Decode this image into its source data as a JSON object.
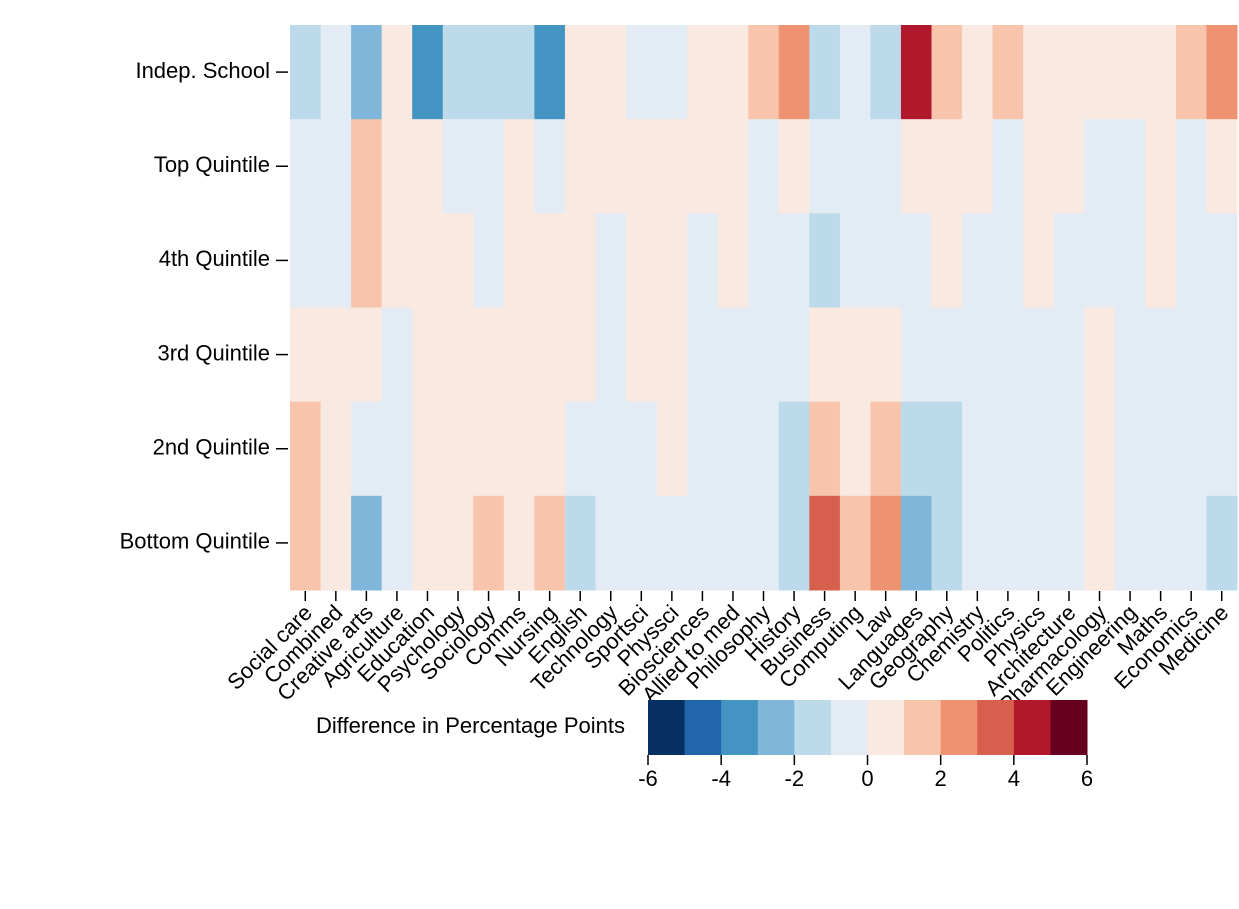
{
  "chart_data": {
    "type": "heatmap",
    "categories": [
      "Social care",
      "Combined",
      "Creative arts",
      "Agriculture",
      "Education",
      "Psychology",
      "Sociology",
      "Comms",
      "Nursing",
      "English",
      "Technology",
      "Sportsci",
      "Physsci",
      "Biosciences",
      "Allied to med",
      "Philosophy",
      "History",
      "Business",
      "Computing",
      "Law",
      "Languages",
      "Geography",
      "Chemistry",
      "Politics",
      "Physics",
      "Architecture",
      "Pharmacology",
      "Engineering",
      "Maths",
      "Economics",
      "Medicine"
    ],
    "rows": [
      "Indep. School",
      "Top Quintile",
      "4th Quintile",
      "3rd Quintile",
      "2nd Quintile",
      "Bottom Quintile"
    ],
    "values": [
      [
        -1.5,
        -0.5,
        -2.5,
        0.5,
        -3.5,
        -1.5,
        -1.5,
        -1.5,
        -3.5,
        0.5,
        0.5,
        -0.5,
        -0.5,
        0.5,
        0.5,
        1.5,
        2.5,
        -1.5,
        -0.5,
        -1.5,
        4.5,
        1.5,
        0.5,
        1.5,
        0.5,
        0.5,
        0.5,
        0.5,
        0.5,
        1.5,
        2.5
      ],
      [
        -0.5,
        -0.5,
        1.5,
        0.5,
        0.5,
        -0.5,
        -0.5,
        0.5,
        -0.5,
        0.5,
        0.5,
        0.5,
        0.5,
        0.5,
        0.5,
        -0.5,
        0.5,
        -0.5,
        -0.5,
        -0.5,
        0.5,
        0.5,
        0.5,
        -0.5,
        0.5,
        0.5,
        -0.5,
        -0.5,
        0.5,
        -0.5,
        0.5
      ],
      [
        -0.5,
        -0.5,
        1.5,
        0.5,
        0.5,
        0.5,
        -0.5,
        0.5,
        0.5,
        0.5,
        -0.5,
        0.5,
        0.5,
        -0.5,
        0.5,
        -0.5,
        -0.5,
        -1.5,
        -0.5,
        -0.5,
        -0.5,
        0.5,
        -0.5,
        -0.5,
        0.5,
        -0.5,
        -0.5,
        -0.5,
        0.5,
        -0.5,
        -0.5
      ],
      [
        0.5,
        0.5,
        0.5,
        -0.5,
        0.5,
        0.5,
        0.5,
        0.5,
        0.5,
        0.5,
        -0.5,
        0.5,
        0.5,
        -0.5,
        -0.5,
        -0.5,
        -0.5,
        0.5,
        0.5,
        0.5,
        -0.5,
        -0.5,
        -0.5,
        -0.5,
        -0.5,
        -0.5,
        0.5,
        -0.5,
        -0.5,
        -0.5,
        -0.5
      ],
      [
        1.5,
        0.5,
        -0.5,
        -0.5,
        0.5,
        0.5,
        0.5,
        0.5,
        0.5,
        -0.5,
        -0.5,
        -0.5,
        0.5,
        -0.5,
        -0.5,
        -0.5,
        -1.5,
        1.5,
        0.5,
        1.5,
        -1.5,
        -1.5,
        -0.5,
        -0.5,
        -0.5,
        -0.5,
        0.5,
        -0.5,
        -0.5,
        -0.5,
        -0.5
      ],
      [
        1.5,
        0.5,
        -2.5,
        -0.5,
        0.5,
        0.5,
        1.5,
        0.5,
        1.5,
        -1.5,
        -0.5,
        -0.5,
        -0.5,
        -0.5,
        -0.5,
        -0.5,
        -1.5,
        3.5,
        1.5,
        2.5,
        -2.5,
        -1.5,
        -0.5,
        -0.5,
        -0.5,
        -0.5,
        0.5,
        -0.5,
        -0.5,
        -0.5,
        -1.5
      ]
    ],
    "colorbar_label": "Difference in Percentage Points",
    "clim": [
      -6,
      6
    ],
    "colors": [
      "#053061",
      "#2166ac",
      "#4393c3",
      "#7fb6d9",
      "#bcdaea",
      "#e3ecf4",
      "#f9e9e1",
      "#f8c4ab",
      "#ef9272",
      "#d6604d",
      "#b2182b",
      "#67001f"
    ],
    "cticks": [
      -6,
      -4,
      -2,
      0,
      2,
      4,
      6
    ]
  }
}
